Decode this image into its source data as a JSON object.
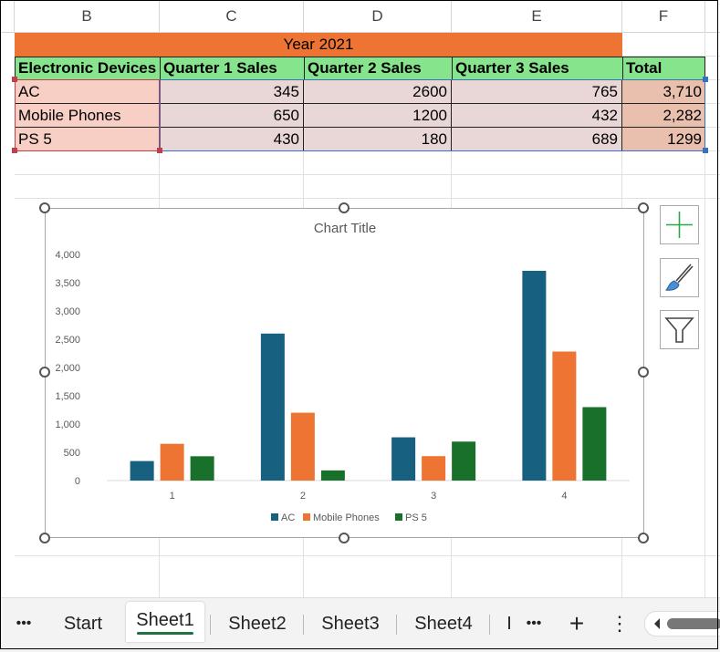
{
  "columns": [
    "B",
    "C",
    "D",
    "E",
    "F"
  ],
  "table": {
    "title": "Year 2021",
    "headers": [
      "Electronic Devices",
      "Quarter 1 Sales",
      "Quarter 2 Sales",
      "Quarter 3 Sales",
      "Total"
    ],
    "rows": [
      [
        "AC",
        "345",
        "2600",
        "765",
        "3,710"
      ],
      [
        "Mobile Phones",
        "650",
        "1200",
        "432",
        "2,282"
      ],
      [
        "PS 5",
        "430",
        "180",
        "689",
        "1299"
      ]
    ]
  },
  "chart_data": {
    "type": "bar",
    "title": "Chart Title",
    "categories": [
      "1",
      "2",
      "3",
      "4"
    ],
    "series": [
      {
        "name": "AC",
        "values": [
          345,
          2600,
          765,
          3710
        ],
        "color": "#17607f"
      },
      {
        "name": "Mobile Phones",
        "values": [
          650,
          1200,
          432,
          2282
        ],
        "color": "#ed7432"
      },
      {
        "name": "PS 5",
        "values": [
          430,
          180,
          689,
          1299
        ],
        "color": "#19702a"
      }
    ],
    "ylim": [
      0,
      4000
    ],
    "yticks": [
      "0",
      "500",
      "1,000",
      "1,500",
      "2,000",
      "2,500",
      "3,000",
      "3,500",
      "4,000"
    ],
    "grid": false,
    "legend": "bottom"
  },
  "sheet_tabs": {
    "more_left": "•••",
    "items": [
      "Start",
      "Sheet1",
      "Sheet2",
      "Sheet3",
      "Sheet4",
      "I"
    ],
    "active": "Sheet1",
    "more_right": "•••",
    "add": "+",
    "menu": "⋮"
  }
}
